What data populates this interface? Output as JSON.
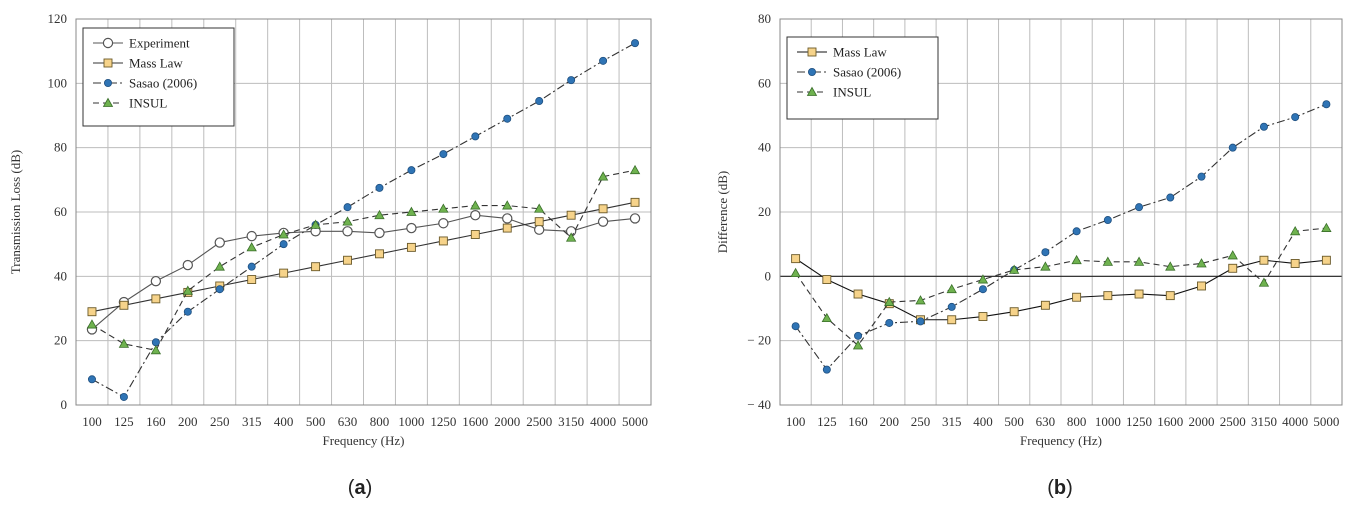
{
  "chart_data": [
    {
      "id": "a",
      "type": "line",
      "caption": "(a)",
      "xlabel": "Frequency (Hz)",
      "ylabel": "Transmission Loss (dB)",
      "ylim": [
        0,
        120
      ],
      "yticks": [
        0,
        20,
        40,
        60,
        80,
        100,
        120
      ],
      "grid": true,
      "legend_position": "top-left",
      "categories": [
        "100",
        "125",
        "160",
        "200",
        "250",
        "315",
        "400",
        "500",
        "630",
        "800",
        "1000",
        "1250",
        "1600",
        "2000",
        "2500",
        "3150",
        "4000",
        "5000"
      ],
      "series": [
        {
          "name": "Experiment",
          "color": "#555555",
          "marker": "circle-open",
          "dash": "solid",
          "values": [
            23.5,
            32,
            38.5,
            43.5,
            50.5,
            52.5,
            53.5,
            54,
            54,
            53.5,
            55,
            56.5,
            59,
            58,
            54.5,
            54,
            57,
            58
          ]
        },
        {
          "name": "Mass Law",
          "color": "#333333",
          "marker": "square",
          "dash": "solid",
          "values": [
            29,
            31,
            33,
            35,
            37,
            39,
            41,
            43,
            45,
            47,
            49,
            51,
            53,
            55,
            57,
            59,
            61,
            63
          ]
        },
        {
          "name": "Sasao (2006)",
          "color": "#333333",
          "marker": "circle-blue",
          "dash": "dashdot",
          "values": [
            8,
            2.5,
            19.5,
            29,
            36,
            43,
            50,
            56,
            61.5,
            67.5,
            73,
            78,
            83.5,
            89,
            94.5,
            101,
            107,
            112.5
          ]
        },
        {
          "name": "INSUL",
          "color": "#333333",
          "marker": "triangle",
          "dash": "dash",
          "values": [
            25,
            19,
            17,
            35.5,
            43,
            49,
            53,
            56,
            57,
            59,
            60,
            61,
            62,
            62,
            61,
            52,
            71,
            73
          ]
        }
      ]
    },
    {
      "id": "b",
      "type": "line",
      "caption": "(b)",
      "xlabel": "Frequency (Hz)",
      "ylabel": "Difference (dB)",
      "ylim": [
        -40,
        80
      ],
      "yticks": [
        -40,
        -20,
        0,
        20,
        40,
        60,
        80
      ],
      "ytick_labels": [
        "− 40",
        "− 20",
        "0",
        "20",
        "40",
        "60",
        "80"
      ],
      "grid": true,
      "legend_position": "top-left",
      "categories": [
        "100",
        "125",
        "160",
        "200",
        "250",
        "315",
        "400",
        "500",
        "630",
        "800",
        "1000",
        "1250",
        "1600",
        "2000",
        "2500",
        "3150",
        "4000",
        "5000"
      ],
      "series": [
        {
          "name": "Mass Law",
          "color": "#111111",
          "marker": "square",
          "dash": "solid",
          "values": [
            5.5,
            -1,
            -5.5,
            -8.5,
            -13.5,
            -13.5,
            -12.5,
            -11,
            -9,
            -6.5,
            -6,
            -5.5,
            -6,
            -3,
            2.5,
            5,
            4,
            5
          ]
        },
        {
          "name": "Sasao (2006)",
          "color": "#333333",
          "marker": "circle-blue",
          "dash": "dashdot",
          "values": [
            -15.5,
            -29,
            -18.5,
            -14.5,
            -14,
            -9.5,
            -4,
            2,
            7.5,
            14,
            17.5,
            21.5,
            24.5,
            31,
            40,
            46.5,
            49.5,
            53.5
          ]
        },
        {
          "name": "INSUL",
          "color": "#333333",
          "marker": "triangle",
          "dash": "dash",
          "values": [
            1,
            -13,
            -21.5,
            -8,
            -7.5,
            -4,
            -1,
            2,
            3,
            5,
            4.5,
            4.5,
            3,
            4,
            6.5,
            -2,
            14,
            15
          ]
        }
      ]
    }
  ]
}
